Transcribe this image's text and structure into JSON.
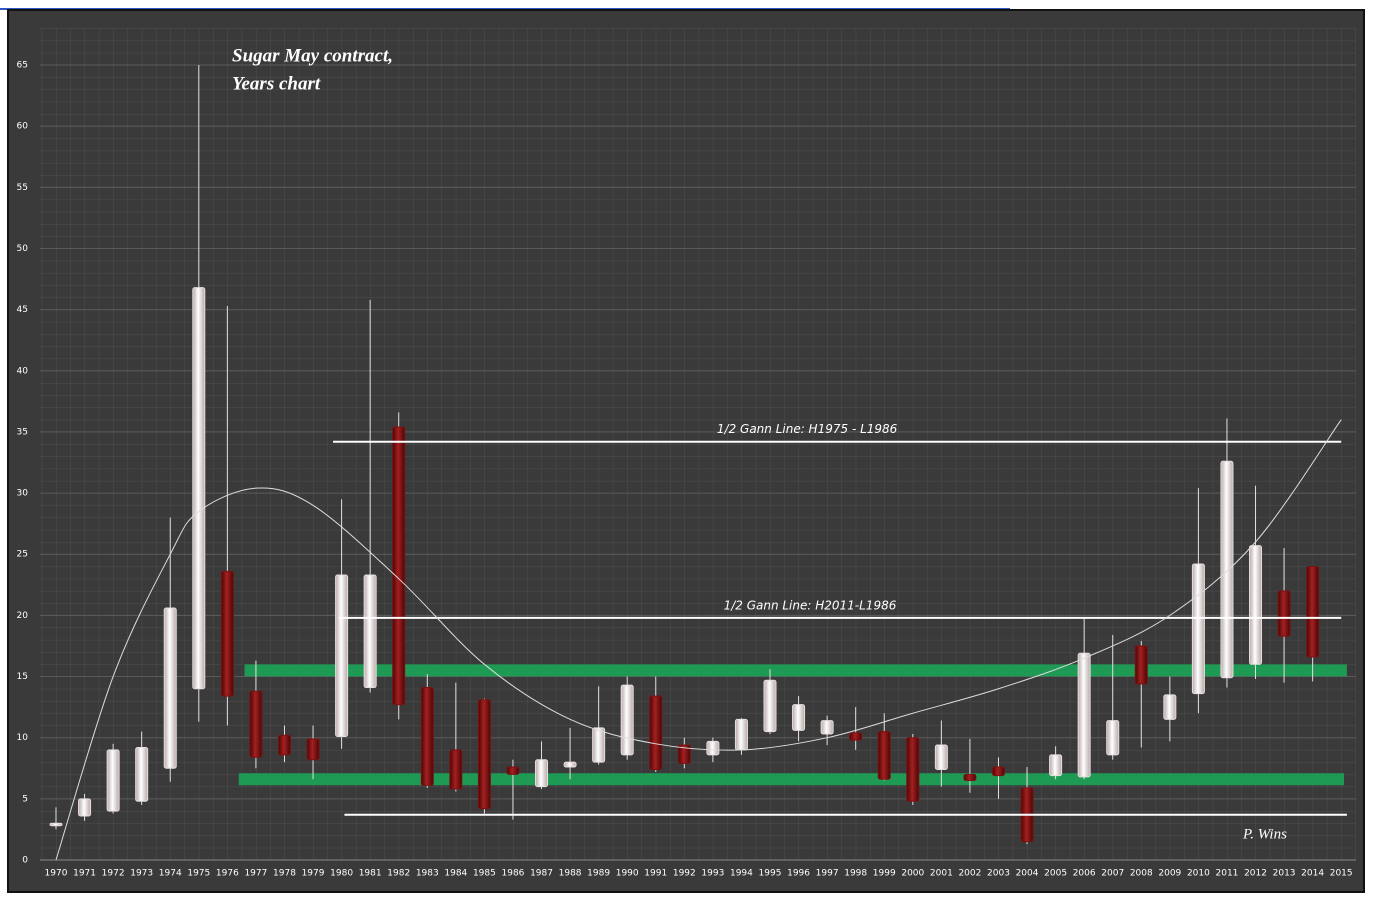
{
  "chart_data": {
    "type": "candlestick",
    "title": "Sugar May contract,",
    "subtitle": "Years chart",
    "author": "P. Wins",
    "categories": [
      "1970",
      "1971",
      "1972",
      "1973",
      "1974",
      "1975",
      "1976",
      "1977",
      "1978",
      "1979",
      "1980",
      "1981",
      "1982",
      "1983",
      "1984",
      "1985",
      "1986",
      "1987",
      "1988",
      "1989",
      "1990",
      "1991",
      "1992",
      "1993",
      "1994",
      "1995",
      "1996",
      "1997",
      "1998",
      "1999",
      "2000",
      "2001",
      "2002",
      "2003",
      "2004",
      "2005",
      "2006",
      "2007",
      "2008",
      "2009",
      "2010",
      "2011",
      "2012",
      "2013",
      "2014",
      "2015"
    ],
    "open": [
      2.8,
      3.6,
      4.0,
      4.8,
      7.5,
      14.0,
      23.6,
      13.8,
      10.2,
      9.9,
      10.1,
      14.1,
      35.4,
      14.1,
      9.0,
      13.1,
      7.6,
      6.0,
      7.6,
      8.0,
      8.6,
      13.4,
      9.4,
      8.6,
      9.0,
      10.5,
      10.6,
      10.3,
      10.4,
      10.5,
      10.0,
      7.4,
      7.0,
      7.6,
      5.9,
      6.9,
      6.8,
      8.6,
      17.5,
      11.5,
      13.6,
      14.9,
      16.0,
      22.0,
      24.0,
      null
    ],
    "high": [
      4.3,
      5.4,
      9.5,
      10.5,
      28.0,
      65.0,
      45.3,
      16.3,
      11.0,
      11.0,
      29.5,
      45.8,
      36.6,
      15.2,
      14.5,
      13.2,
      8.2,
      9.7,
      10.8,
      14.2,
      15.0,
      15.0,
      10.0,
      10.0,
      11.6,
      15.6,
      13.4,
      11.8,
      12.5,
      12.0,
      10.3,
      11.4,
      9.9,
      8.4,
      7.6,
      9.3,
      19.7,
      18.4,
      17.9,
      15.0,
      30.4,
      36.1,
      30.6,
      25.5,
      24.0,
      null
    ],
    "low": [
      2.5,
      3.2,
      3.8,
      4.5,
      6.4,
      11.3,
      11.0,
      7.5,
      8.0,
      6.6,
      9.1,
      13.7,
      11.5,
      5.9,
      5.6,
      3.8,
      3.3,
      5.8,
      6.6,
      7.8,
      8.2,
      7.2,
      7.5,
      8.0,
      8.6,
      10.3,
      9.7,
      9.4,
      9.0,
      6.5,
      4.5,
      6.0,
      5.5,
      5.0,
      1.3,
      6.6,
      6.6,
      8.2,
      9.2,
      9.7,
      12.0,
      14.1,
      14.8,
      14.5,
      14.6,
      null
    ],
    "close": [
      3.0,
      5.0,
      9.0,
      9.2,
      20.6,
      46.8,
      13.4,
      8.4,
      8.6,
      8.2,
      23.3,
      23.3,
      12.7,
      6.1,
      5.8,
      4.2,
      7.0,
      8.2,
      8.0,
      10.8,
      14.3,
      7.4,
      7.9,
      9.7,
      11.5,
      14.7,
      12.7,
      11.4,
      9.8,
      6.6,
      4.8,
      9.4,
      6.5,
      6.9,
      1.5,
      8.6,
      16.9,
      11.4,
      14.4,
      13.5,
      24.2,
      32.6,
      25.7,
      18.3,
      16.6,
      null
    ],
    "up_color": "#e8dede",
    "down_color": "#7a1212",
    "ylim": [
      0,
      65
    ],
    "yticks": [
      0,
      5,
      10,
      15,
      20,
      25,
      30,
      35,
      40,
      45,
      50,
      55,
      60,
      65
    ],
    "grid": true,
    "lines": [
      {
        "label": "1/2 Gann Line: H1975  - L1986",
        "y": 34.2,
        "x": [
          1979.7,
          2015
        ]
      },
      {
        "label": "1/2 Gann Line: H2011-L1986",
        "y": 19.8,
        "x": [
          1979.9,
          2015
        ]
      },
      {
        "y": 3.7,
        "x": [
          1980.1,
          2015.2
        ]
      }
    ],
    "bands": [
      {
        "y": 15.5,
        "x": [
          1976.6,
          2015.2
        ],
        "color": "#1f9a55"
      },
      {
        "y": 6.6,
        "x": [
          1976.4,
          2015.1
        ],
        "color": "#1f9a55"
      }
    ],
    "trend": {
      "x": [
        1970,
        1972,
        1974,
        1975,
        1977,
        1979,
        1982,
        1985,
        1988,
        1991,
        1994,
        1997,
        2000,
        2003,
        2006,
        2009,
        2012,
        2015
      ],
      "y": [
        0,
        15,
        25,
        28.5,
        30.4,
        29,
        23,
        16,
        11.5,
        9.5,
        9.0,
        10,
        12,
        14,
        16.5,
        20,
        26,
        36
      ]
    }
  }
}
